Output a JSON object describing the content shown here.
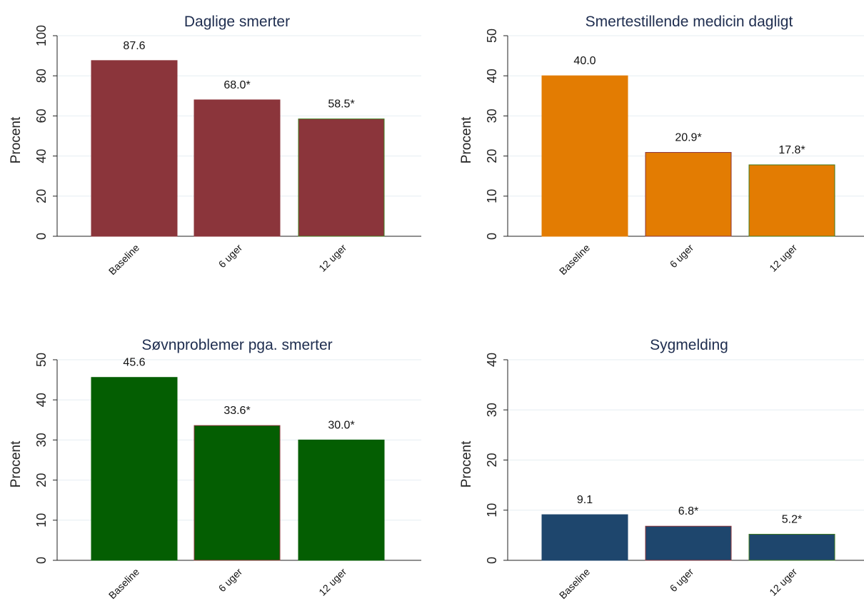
{
  "chart_data": [
    {
      "type": "bar",
      "title": "Daglige smerter",
      "ylabel": "Procent",
      "categories": [
        "Baseline",
        "6 uger",
        "12 uger"
      ],
      "values": [
        87.6,
        68.0,
        58.5
      ],
      "labels": [
        "87.6",
        "68.0*",
        "58.5*"
      ],
      "ylim": [
        0,
        100
      ],
      "yticks": [
        0,
        20,
        40,
        60,
        80,
        100
      ],
      "color": "#8b353b",
      "outline_colors": [
        "#8b353b",
        "#8b353b",
        "#3f7a1e"
      ],
      "grid": true
    },
    {
      "type": "bar",
      "title": "Smertestillende medicin dagligt",
      "ylabel": "Procent",
      "categories": [
        "Baseline",
        "6 uger",
        "12 uger"
      ],
      "values": [
        40.0,
        20.9,
        17.8
      ],
      "labels": [
        "40.0",
        "20.9*",
        "17.8*"
      ],
      "ylim": [
        0,
        50
      ],
      "yticks": [
        0,
        10,
        20,
        30,
        40,
        50
      ],
      "color": "#e37c02",
      "outline_colors": [
        "#e37c02",
        "#8b353b",
        "#3f7a1e"
      ],
      "grid": true
    },
    {
      "type": "bar",
      "title": "Søvnproblemer pga. smerter",
      "ylabel": "Procent",
      "categories": [
        "Baseline",
        "6 uger",
        "12 uger"
      ],
      "values": [
        45.6,
        33.6,
        30.0
      ],
      "labels": [
        "45.6",
        "33.6*",
        "30.0*"
      ],
      "ylim": [
        0,
        50
      ],
      "yticks": [
        0,
        10,
        20,
        30,
        40,
        50
      ],
      "color": "#045e02",
      "outline_colors": [
        "#045e02",
        "#8b353b",
        "#045e02"
      ],
      "grid": true
    },
    {
      "type": "bar",
      "title": "Sygmelding",
      "ylabel": "Procent",
      "categories": [
        "Baseline",
        "6 uger",
        "12 uger"
      ],
      "values": [
        9.1,
        6.8,
        5.2
      ],
      "labels": [
        "9.1",
        "6.8*",
        "5.2*"
      ],
      "ylim": [
        0,
        40
      ],
      "yticks": [
        0,
        10,
        20,
        30,
        40
      ],
      "color": "#1e466d",
      "outline_colors": [
        "#1e466d",
        "#8b353b",
        "#3f7a1e"
      ],
      "grid": true
    }
  ]
}
